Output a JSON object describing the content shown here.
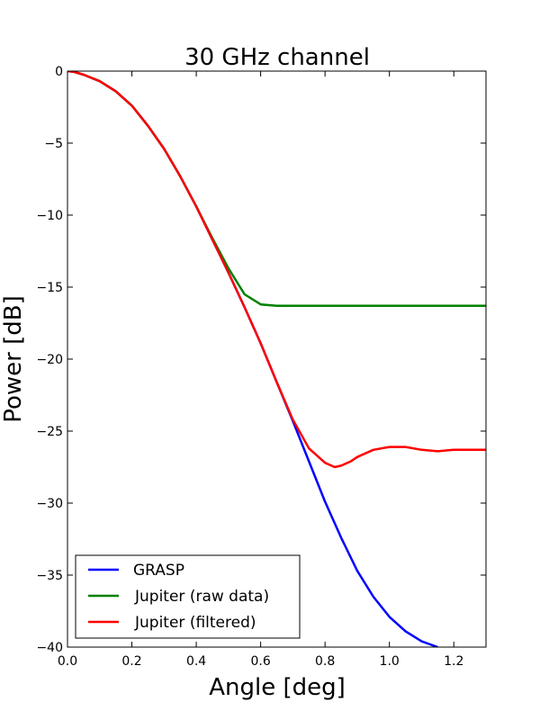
{
  "chart_data": {
    "type": "line",
    "title": "30 GHz channel",
    "xlabel": "Angle [deg]",
    "ylabel": "Power [dB]",
    "xlim": [
      0.0,
      1.3
    ],
    "ylim": [
      -40,
      0
    ],
    "xticks": [
      0.0,
      0.2,
      0.4,
      0.6,
      0.8,
      1.0,
      1.2
    ],
    "xtick_labels": [
      "0.0",
      "0.2",
      "0.4",
      "0.6",
      "0.8",
      "1.0",
      "1.2"
    ],
    "yticks": [
      0,
      -5,
      -10,
      -15,
      -20,
      -25,
      -30,
      -35,
      -40
    ],
    "ytick_labels": [
      "0",
      "−5",
      "−10",
      "−15",
      "−20",
      "−25",
      "−30",
      "−35",
      "−40"
    ],
    "grid": false,
    "legend_position": "lower-left",
    "series": [
      {
        "name": "GRASP",
        "color": "#0000ff",
        "x": [
          0.0,
          0.02,
          0.05,
          0.1,
          0.15,
          0.2,
          0.25,
          0.3,
          0.35,
          0.4,
          0.45,
          0.5,
          0.55,
          0.6,
          0.65,
          0.7,
          0.75,
          0.8,
          0.85,
          0.9,
          0.95,
          1.0,
          1.05,
          1.1,
          1.15
        ],
        "y": [
          0.0,
          -0.05,
          -0.25,
          -0.7,
          -1.4,
          -2.4,
          -3.8,
          -5.4,
          -7.3,
          -9.4,
          -11.7,
          -14.0,
          -16.4,
          -18.9,
          -21.6,
          -24.3,
          -27.1,
          -29.9,
          -32.4,
          -34.7,
          -36.5,
          -37.9,
          -38.9,
          -39.6,
          -40.0
        ]
      },
      {
        "name": "Jupiter (raw data)",
        "color": "#008000",
        "x": [
          0.0,
          0.02,
          0.05,
          0.1,
          0.15,
          0.2,
          0.25,
          0.3,
          0.35,
          0.4,
          0.45,
          0.5,
          0.55,
          0.6,
          0.65,
          0.7,
          0.75,
          0.8,
          0.85,
          0.9,
          0.95,
          1.0,
          1.05,
          1.1,
          1.15,
          1.2,
          1.25,
          1.3
        ],
        "y": [
          0.0,
          -0.05,
          -0.25,
          -0.7,
          -1.4,
          -2.4,
          -3.8,
          -5.4,
          -7.3,
          -9.4,
          -11.6,
          -13.7,
          -15.5,
          -16.2,
          -16.3,
          -16.3,
          -16.3,
          -16.3,
          -16.3,
          -16.3,
          -16.3,
          -16.3,
          -16.3,
          -16.3,
          -16.3,
          -16.3,
          -16.3,
          -16.3
        ]
      },
      {
        "name": "Jupiter (filtered)",
        "color": "#ff0000",
        "x": [
          0.0,
          0.02,
          0.05,
          0.1,
          0.15,
          0.2,
          0.25,
          0.3,
          0.35,
          0.4,
          0.45,
          0.5,
          0.55,
          0.6,
          0.65,
          0.7,
          0.75,
          0.8,
          0.83,
          0.85,
          0.88,
          0.9,
          0.95,
          1.0,
          1.05,
          1.1,
          1.15,
          1.2,
          1.25,
          1.3
        ],
        "y": [
          0.0,
          -0.05,
          -0.25,
          -0.7,
          -1.4,
          -2.4,
          -3.8,
          -5.4,
          -7.3,
          -9.4,
          -11.7,
          -14.0,
          -16.4,
          -18.9,
          -21.6,
          -24.2,
          -26.2,
          -27.2,
          -27.5,
          -27.4,
          -27.1,
          -26.8,
          -26.3,
          -26.1,
          -26.1,
          -26.3,
          -26.4,
          -26.3,
          -26.3,
          -26.3
        ]
      }
    ]
  }
}
